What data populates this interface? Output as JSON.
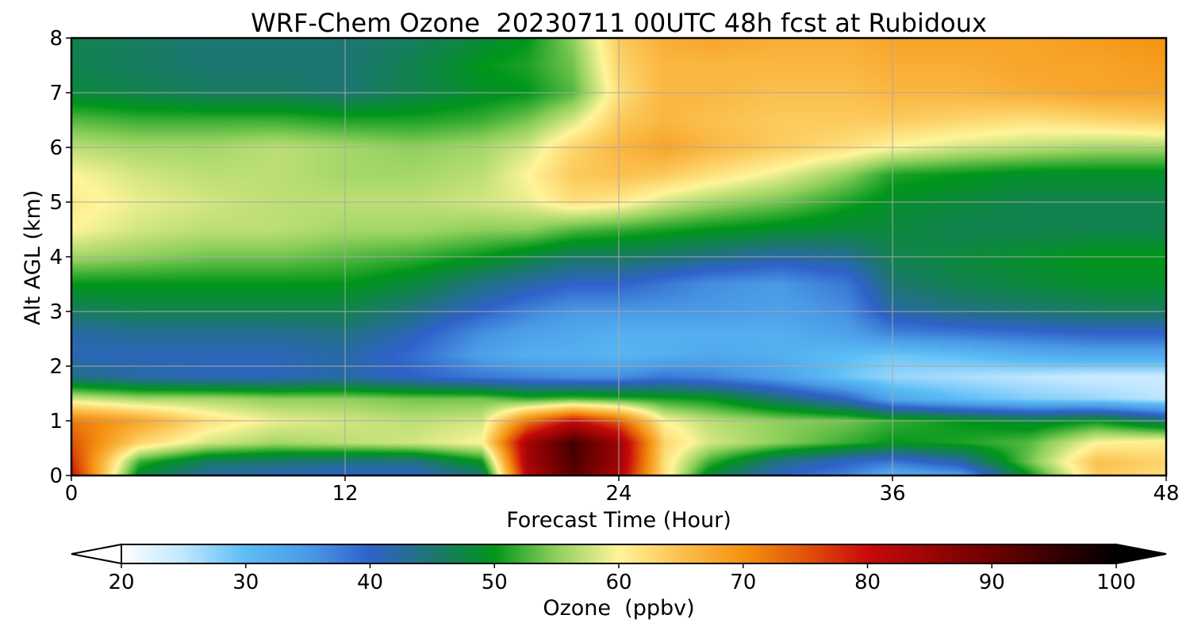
{
  "chart_data": {
    "type": "heatmap",
    "title": "WRF-Chem Ozone  20230711 00UTC 48h fcst at Rubidoux",
    "xlabel": "Forecast Time (Hour)",
    "ylabel": "Alt AGL (km)",
    "xlim": [
      0,
      48
    ],
    "ylim": [
      0,
      8
    ],
    "x_ticks": [
      0,
      12,
      24,
      36,
      48
    ],
    "y_ticks": [
      0,
      1,
      2,
      3,
      4,
      5,
      6,
      7,
      8
    ],
    "grid": true,
    "colorbar": {
      "label": "Ozone  (ppbv)",
      "min": 20,
      "max": 100,
      "ticks": [
        20,
        30,
        40,
        50,
        60,
        70,
        80,
        90,
        100
      ],
      "extend": "both",
      "stops": [
        {
          "value": 20,
          "color": "#ffffff"
        },
        {
          "value": 25,
          "color": "#bfe6ff"
        },
        {
          "value": 30,
          "color": "#5bbdf5"
        },
        {
          "value": 35,
          "color": "#4a9ae6"
        },
        {
          "value": 40,
          "color": "#2f62c9"
        },
        {
          "value": 45,
          "color": "#1d7672"
        },
        {
          "value": 50,
          "color": "#00961a"
        },
        {
          "value": 55,
          "color": "#8fd05c"
        },
        {
          "value": 60,
          "color": "#fff59a"
        },
        {
          "value": 65,
          "color": "#fbc04e"
        },
        {
          "value": 70,
          "color": "#f59210"
        },
        {
          "value": 75,
          "color": "#e0530a"
        },
        {
          "value": 80,
          "color": "#c80a0a"
        },
        {
          "value": 90,
          "color": "#6e0000"
        },
        {
          "value": 100,
          "color": "#000000"
        }
      ]
    },
    "x": [
      0,
      3,
      6,
      9,
      12,
      15,
      18,
      20,
      22,
      24,
      26,
      28,
      31,
      34,
      36,
      39,
      42,
      45,
      48
    ],
    "y": [
      0,
      0.25,
      0.6,
      1,
      1.4,
      1.8,
      2.2,
      2.6,
      3,
      3.5,
      4,
      4.5,
      5,
      5.5,
      6,
      6.5,
      7,
      7.5,
      8
    ],
    "z": [
      [
        80,
        48,
        42,
        41,
        40,
        40,
        45,
        82,
        92,
        83,
        62,
        48,
        40,
        37,
        32,
        34,
        50,
        64,
        62
      ],
      [
        78,
        52,
        46,
        45,
        44,
        44,
        50,
        84,
        93,
        85,
        62,
        52,
        44,
        40,
        38,
        42,
        54,
        65,
        63
      ],
      [
        75,
        63,
        58,
        56,
        57,
        58,
        60,
        84,
        94,
        85,
        63,
        58,
        55,
        52,
        50,
        51,
        53,
        60,
        61
      ],
      [
        72,
        68,
        62,
        59,
        58,
        57,
        58,
        72,
        80,
        74,
        60,
        57,
        55,
        54,
        52,
        50,
        48,
        50,
        45
      ],
      [
        58,
        56,
        56,
        55,
        55,
        54,
        54,
        52,
        53,
        52,
        51,
        50,
        45,
        40,
        33,
        30,
        28,
        27,
        25
      ],
      [
        44,
        42,
        41,
        41,
        42,
        40,
        38,
        37,
        36,
        36,
        38,
        37,
        34,
        29,
        27,
        26,
        25,
        24,
        24
      ],
      [
        41,
        41,
        41,
        41,
        42,
        39,
        34,
        32,
        32,
        31,
        32,
        33,
        32,
        30,
        29,
        30,
        32,
        33,
        33
      ],
      [
        42,
        43,
        43,
        43,
        44,
        41,
        36,
        34,
        33,
        32,
        32,
        32,
        32,
        34,
        37,
        38,
        39,
        40,
        40
      ],
      [
        46,
        47,
        47,
        47,
        47,
        44,
        40,
        37,
        35,
        35,
        35,
        35,
        34,
        36,
        42,
        44,
        45,
        46,
        46
      ],
      [
        50,
        50,
        50,
        50,
        50,
        48,
        44,
        42,
        40,
        40,
        38,
        36,
        35,
        38,
        45,
        47,
        48,
        49,
        49
      ],
      [
        56,
        55,
        54,
        54,
        53,
        52,
        50,
        48,
        46,
        46,
        45,
        44,
        42,
        43,
        47,
        48,
        49,
        50,
        50
      ],
      [
        60,
        58,
        57,
        57,
        56,
        56,
        55,
        55,
        53,
        52,
        51,
        50,
        49,
        48,
        48,
        47,
        47,
        47,
        47
      ],
      [
        61,
        59,
        58,
        57,
        57,
        57,
        58,
        59,
        62,
        61,
        58,
        56,
        54,
        51,
        49,
        48,
        47,
        47,
        47
      ],
      [
        60,
        58,
        57,
        57,
        56,
        56,
        57,
        60,
        64,
        65,
        64,
        62,
        59,
        55,
        51,
        50,
        49,
        49,
        49
      ],
      [
        57,
        56,
        56,
        57,
        56,
        55,
        56,
        58,
        63,
        66,
        68,
        66,
        64,
        62,
        60,
        58,
        57,
        56,
        56
      ],
      [
        53,
        52,
        52,
        52,
        51,
        51,
        52,
        54,
        58,
        64,
        66,
        65,
        64,
        64,
        64,
        63,
        62,
        63,
        64
      ],
      [
        48,
        47,
        46,
        46,
        45,
        47,
        49,
        50,
        53,
        62,
        66,
        66,
        65,
        65,
        66,
        66,
        67,
        68,
        68
      ],
      [
        47,
        46,
        45,
        45,
        45,
        47,
        50,
        51,
        54,
        63,
        66,
        66,
        66,
        66,
        67,
        67,
        68,
        68,
        69
      ],
      [
        47,
        46,
        45,
        45,
        45,
        46,
        48,
        50,
        55,
        64,
        67,
        68,
        67,
        67,
        68,
        68,
        68,
        69,
        70
      ]
    ]
  }
}
